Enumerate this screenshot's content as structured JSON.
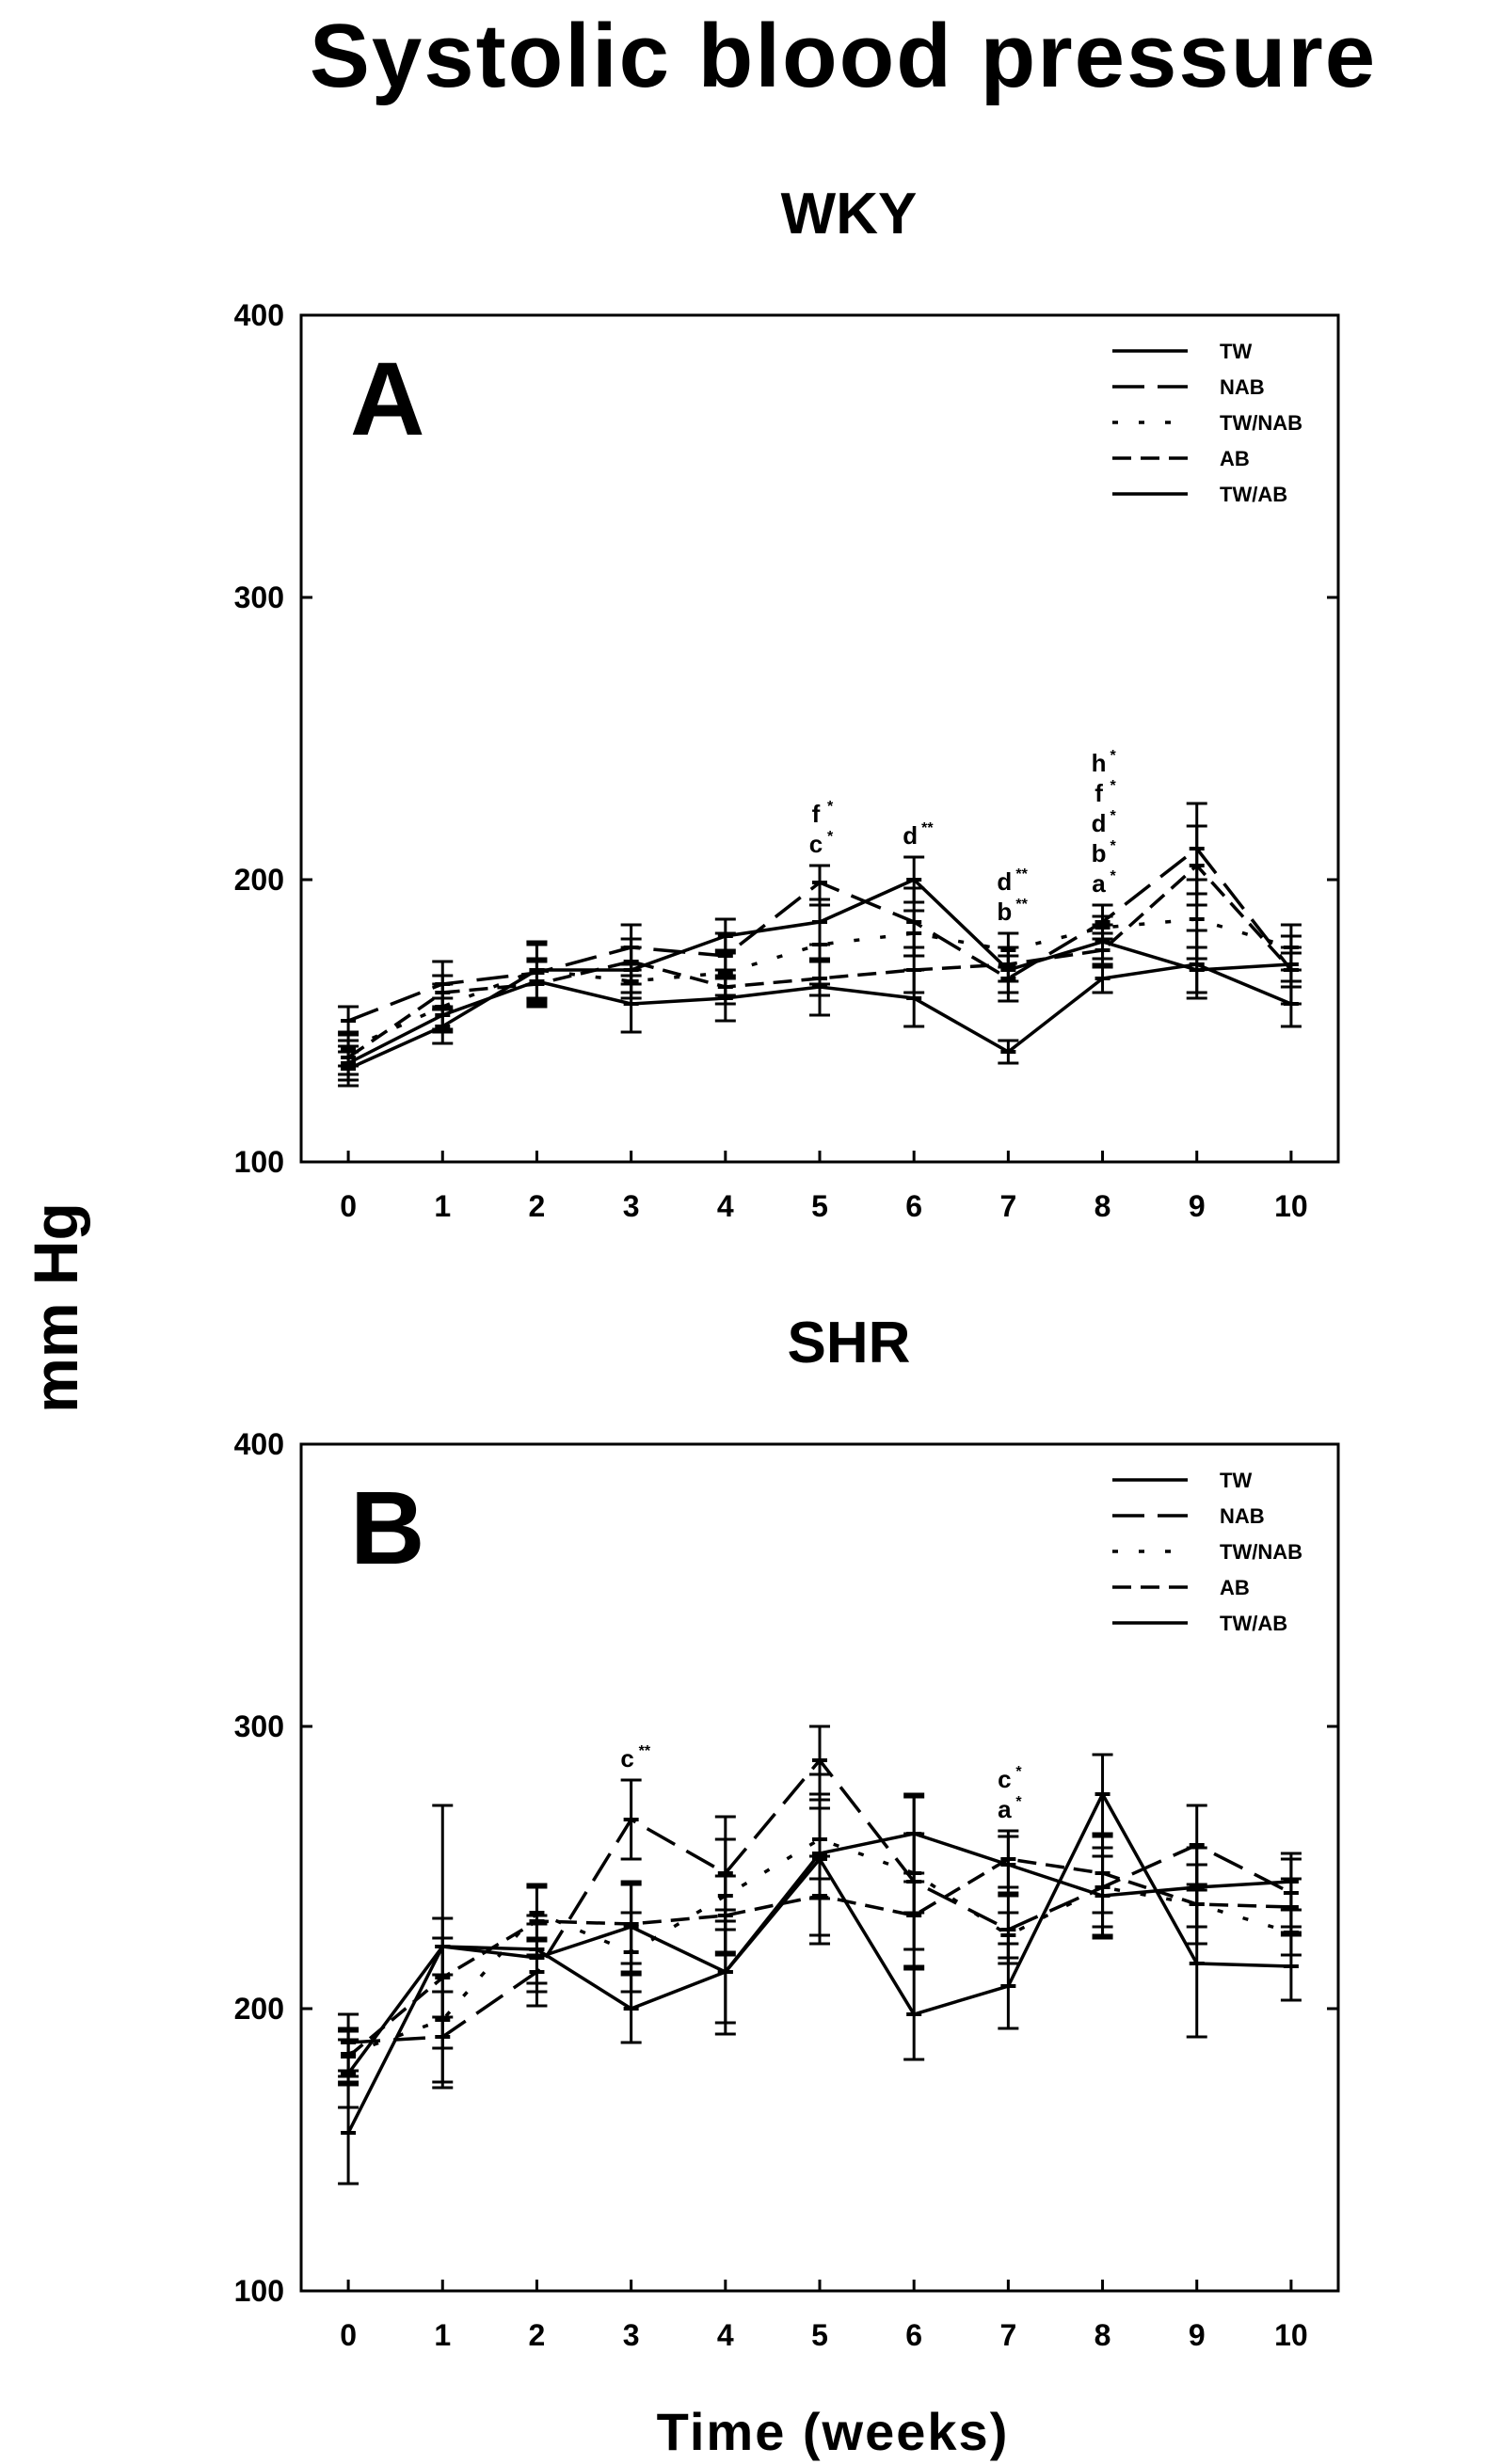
{
  "figure": {
    "title": "Systolic blood pressure",
    "ylabel": "mm Hg",
    "xlabel": "Time (weeks)"
  },
  "chart_data": [
    {
      "type": "line",
      "panel": "A",
      "title": "WKY",
      "xlabel": "Time (weeks)",
      "ylabel": "mm Hg",
      "x": [
        0,
        1,
        2,
        3,
        4,
        5,
        6,
        7,
        8,
        9,
        10
      ],
      "xlim": [
        -0.5,
        10.5
      ],
      "ylim": [
        100,
        400
      ],
      "yticks": [
        100,
        200,
        300,
        400
      ],
      "legend_position": "top-right",
      "series": [
        {
          "name": "TW",
          "dash": "solid",
          "values": [
            135,
            152,
            164,
            156,
            158,
            162,
            158,
            139,
            165,
            170,
            156
          ],
          "err": [
            6,
            6,
            8,
            10,
            8,
            10,
            10,
            4,
            5,
            12,
            8
          ]
        },
        {
          "name": "NAB",
          "dash": "longdash",
          "values": [
            150,
            163,
            167,
            176,
            173,
            199,
            185,
            165,
            185,
            211,
            168
          ],
          "err": [
            5,
            8,
            10,
            8,
            8,
            6,
            12,
            8,
            6,
            16,
            12
          ]
        },
        {
          "name": "TW/NAB",
          "dash": "dotted",
          "values": [
            140,
            155,
            168,
            164,
            167,
            177,
            181,
            175,
            183,
            186,
            176
          ],
          "err": [
            6,
            8,
            10,
            6,
            8,
            14,
            8,
            6,
            4,
            14,
            8
          ]
        },
        {
          "name": "AB",
          "dash": "dashed",
          "values": [
            137,
            160,
            163,
            171,
            162,
            165,
            168,
            170,
            175,
            205,
            168
          ],
          "err": [
            6,
            6,
            8,
            8,
            6,
            6,
            8,
            6,
            6,
            14,
            6
          ]
        },
        {
          "name": "TW/AB",
          "dash": "solid",
          "values": [
            133,
            148,
            168,
            168,
            180,
            185,
            200,
            168,
            178,
            168,
            170
          ],
          "err": [
            6,
            6,
            10,
            8,
            6,
            8,
            8,
            8,
            6,
            8,
            6
          ]
        }
      ],
      "annotations": [
        {
          "x": 5,
          "labels": [
            {
              "text": "f",
              "mark": "*"
            },
            {
              "text": "c",
              "mark": "*"
            }
          ]
        },
        {
          "x": 6,
          "labels": [
            {
              "text": "d",
              "mark": "**"
            }
          ]
        },
        {
          "x": 7,
          "labels": [
            {
              "text": "d",
              "mark": "**"
            },
            {
              "text": "b",
              "mark": "**"
            }
          ]
        },
        {
          "x": 8,
          "labels": [
            {
              "text": "h",
              "mark": "*"
            },
            {
              "text": "f",
              "mark": "*"
            },
            {
              "text": "d",
              "mark": "*"
            },
            {
              "text": "b",
              "mark": "*"
            },
            {
              "text": "a",
              "mark": "*"
            }
          ]
        }
      ]
    },
    {
      "type": "line",
      "panel": "B",
      "title": "SHR",
      "xlabel": "Time (weeks)",
      "ylabel": "mm Hg",
      "x": [
        0,
        1,
        2,
        3,
        4,
        5,
        6,
        7,
        8,
        9,
        10
      ],
      "xlim": [
        -0.5,
        10.5
      ],
      "ylim": [
        100,
        400
      ],
      "yticks": [
        100,
        200,
        300,
        400
      ],
      "legend_position": "top-right",
      "series": [
        {
          "name": "TW",
          "dash": "solid",
          "values": [
            156,
            222,
            221,
            200,
            213,
            253,
            198,
            208,
            276,
            216,
            215
          ],
          "err": [
            18,
            50,
            12,
            12,
            22,
            30,
            16,
            15,
            14,
            26,
            12
          ]
        },
        {
          "name": "NAB",
          "dash": "longdash",
          "values": [
            188,
            190,
            213,
            267,
            248,
            288,
            245,
            228,
            243,
            258,
            241
          ],
          "err": [
            10,
            16,
            12,
            14,
            20,
            12,
            30,
            12,
            14,
            14,
            12
          ]
        },
        {
          "name": "TW/NAB",
          "dash": "dotted",
          "values": [
            184,
            196,
            234,
            220,
            240,
            260,
            248,
            226,
            243,
            237,
            227
          ],
          "err": [
            8,
            10,
            10,
            14,
            20,
            14,
            14,
            8,
            18,
            14,
            8
          ]
        },
        {
          "name": "AB",
          "dash": "dashed",
          "values": [
            183,
            211,
            231,
            230,
            233,
            240,
            233,
            253,
            248,
            237,
            236
          ],
          "err": [
            10,
            14,
            12,
            14,
            14,
            14,
            12,
            10,
            14,
            14,
            10
          ]
        },
        {
          "name": "TW/AB",
          "dash": "solid",
          "values": [
            177,
            222,
            218,
            229,
            213,
            255,
            262,
            251,
            240,
            243,
            245
          ],
          "err": [
            12,
            10,
            12,
            16,
            18,
            16,
            14,
            10,
            14,
            14,
            10
          ]
        }
      ],
      "annotations": [
        {
          "x": 3,
          "labels": [
            {
              "text": "c",
              "mark": "**"
            }
          ]
        },
        {
          "x": 7,
          "labels": [
            {
              "text": "c",
              "mark": "*"
            },
            {
              "text": "a",
              "mark": "*"
            }
          ]
        }
      ]
    }
  ]
}
